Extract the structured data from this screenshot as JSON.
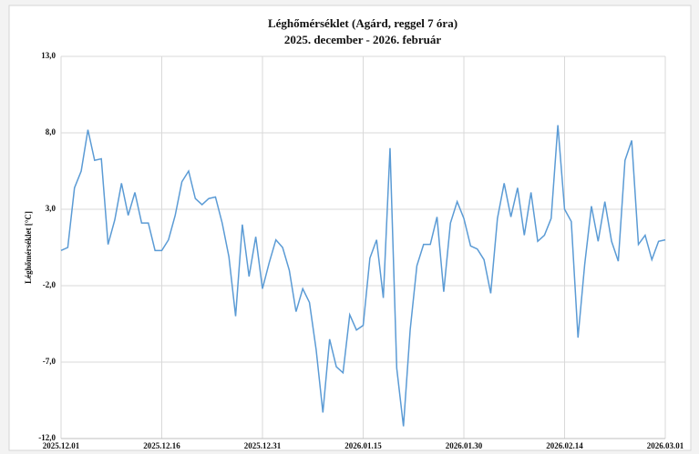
{
  "chart_data": {
    "type": "line",
    "title": "Léghőmérséklet (Agárd, reggel 7 óra)",
    "subtitle": "2025. december - 2026. február",
    "y_label": "Léghőmérséklet [°C]",
    "x": [
      "2025.12.01",
      "2025.12.02",
      "2025.12.03",
      "2025.12.04",
      "2025.12.05",
      "2025.12.06",
      "2025.12.07",
      "2025.12.08",
      "2025.12.09",
      "2025.12.10",
      "2025.12.11",
      "2025.12.12",
      "2025.12.13",
      "2025.12.14",
      "2025.12.15",
      "2025.12.16",
      "2025.12.17",
      "2025.12.18",
      "2025.12.19",
      "2025.12.20",
      "2025.12.21",
      "2025.12.22",
      "2025.12.23",
      "2025.12.24",
      "2025.12.25",
      "2025.12.26",
      "2025.12.27",
      "2025.12.28",
      "2025.12.29",
      "2025.12.30",
      "2025.12.31",
      "2026.01.01",
      "2026.01.02",
      "2026.01.03",
      "2026.01.04",
      "2026.01.05",
      "2026.01.06",
      "2026.01.07",
      "2026.01.08",
      "2026.01.09",
      "2026.01.10",
      "2026.01.11",
      "2026.01.12",
      "2026.01.13",
      "2026.01.14",
      "2026.01.15",
      "2026.01.16",
      "2026.01.17",
      "2026.01.18",
      "2026.01.19",
      "2026.01.20",
      "2026.01.21",
      "2026.01.22",
      "2026.01.23",
      "2026.01.24",
      "2026.01.25",
      "2026.01.26",
      "2026.01.27",
      "2026.01.28",
      "2026.01.29",
      "2026.01.30",
      "2026.01.31",
      "2026.02.01",
      "2026.02.02",
      "2026.02.03",
      "2026.02.04",
      "2026.02.05",
      "2026.02.06",
      "2026.02.07",
      "2026.02.08",
      "2026.02.09",
      "2026.02.10",
      "2026.02.11",
      "2026.02.12",
      "2026.02.13",
      "2026.02.14",
      "2026.02.15",
      "2026.02.16",
      "2026.02.17",
      "2026.02.18",
      "2026.02.19",
      "2026.02.20",
      "2026.02.21",
      "2026.02.22",
      "2026.02.23",
      "2026.02.24",
      "2026.02.25",
      "2026.02.26",
      "2026.02.27",
      "2026.02.28",
      "2026.03.01"
    ],
    "series": [
      {
        "name": "Léghőmérséklet",
        "color": "#5b9bd5",
        "values": [
          0.3,
          0.5,
          4.4,
          5.5,
          8.2,
          6.2,
          6.3,
          0.7,
          2.3,
          4.7,
          2.6,
          4.1,
          2.1,
          2.1,
          0.3,
          0.3,
          1.0,
          2.6,
          4.8,
          5.5,
          3.7,
          3.3,
          3.7,
          3.8,
          2.1,
          -0.1,
          -4.0,
          2.0,
          -1.4,
          1.2,
          -2.2,
          -0.5,
          1.0,
          0.5,
          -1.0,
          -3.7,
          -2.2,
          -3.1,
          -6.2,
          -10.3,
          -5.5,
          -7.3,
          -7.7,
          -3.9,
          -4.9,
          -4.6,
          -0.2,
          1.0,
          -2.8,
          7.0,
          -7.4,
          -11.2,
          -4.9,
          -0.7,
          0.7,
          0.7,
          2.5,
          -2.4,
          2.1,
          3.5,
          2.4,
          0.6,
          0.4,
          -0.3,
          -2.5,
          2.4,
          4.7,
          2.5,
          4.4,
          1.3,
          4.1,
          0.9,
          1.3,
          2.4,
          8.5,
          3.0,
          2.2,
          -5.4,
          -0.6,
          3.2,
          0.9,
          3.5,
          0.9,
          -0.4,
          6.2,
          7.5,
          0.7,
          1.3,
          -0.3,
          0.9,
          1.0
        ]
      }
    ],
    "xlim": [
      "2025.12.01",
      "2026.03.01"
    ],
    "xticks": [
      "2025.12.01",
      "2025.12.16",
      "2025.12.31",
      "2026.01.15",
      "2026.01.30",
      "2026.02.14",
      "2026.03.01"
    ],
    "ylim": [
      -12,
      13
    ],
    "yticks": [
      {
        "value": -12,
        "label": "-12,0"
      },
      {
        "value": -7,
        "label": "-7,0"
      },
      {
        "value": -2,
        "label": "-2,0"
      },
      {
        "value": 3,
        "label": "3,0"
      },
      {
        "value": 8,
        "label": "8,0"
      },
      {
        "value": 13,
        "label": "13,0"
      }
    ],
    "grid": true
  }
}
